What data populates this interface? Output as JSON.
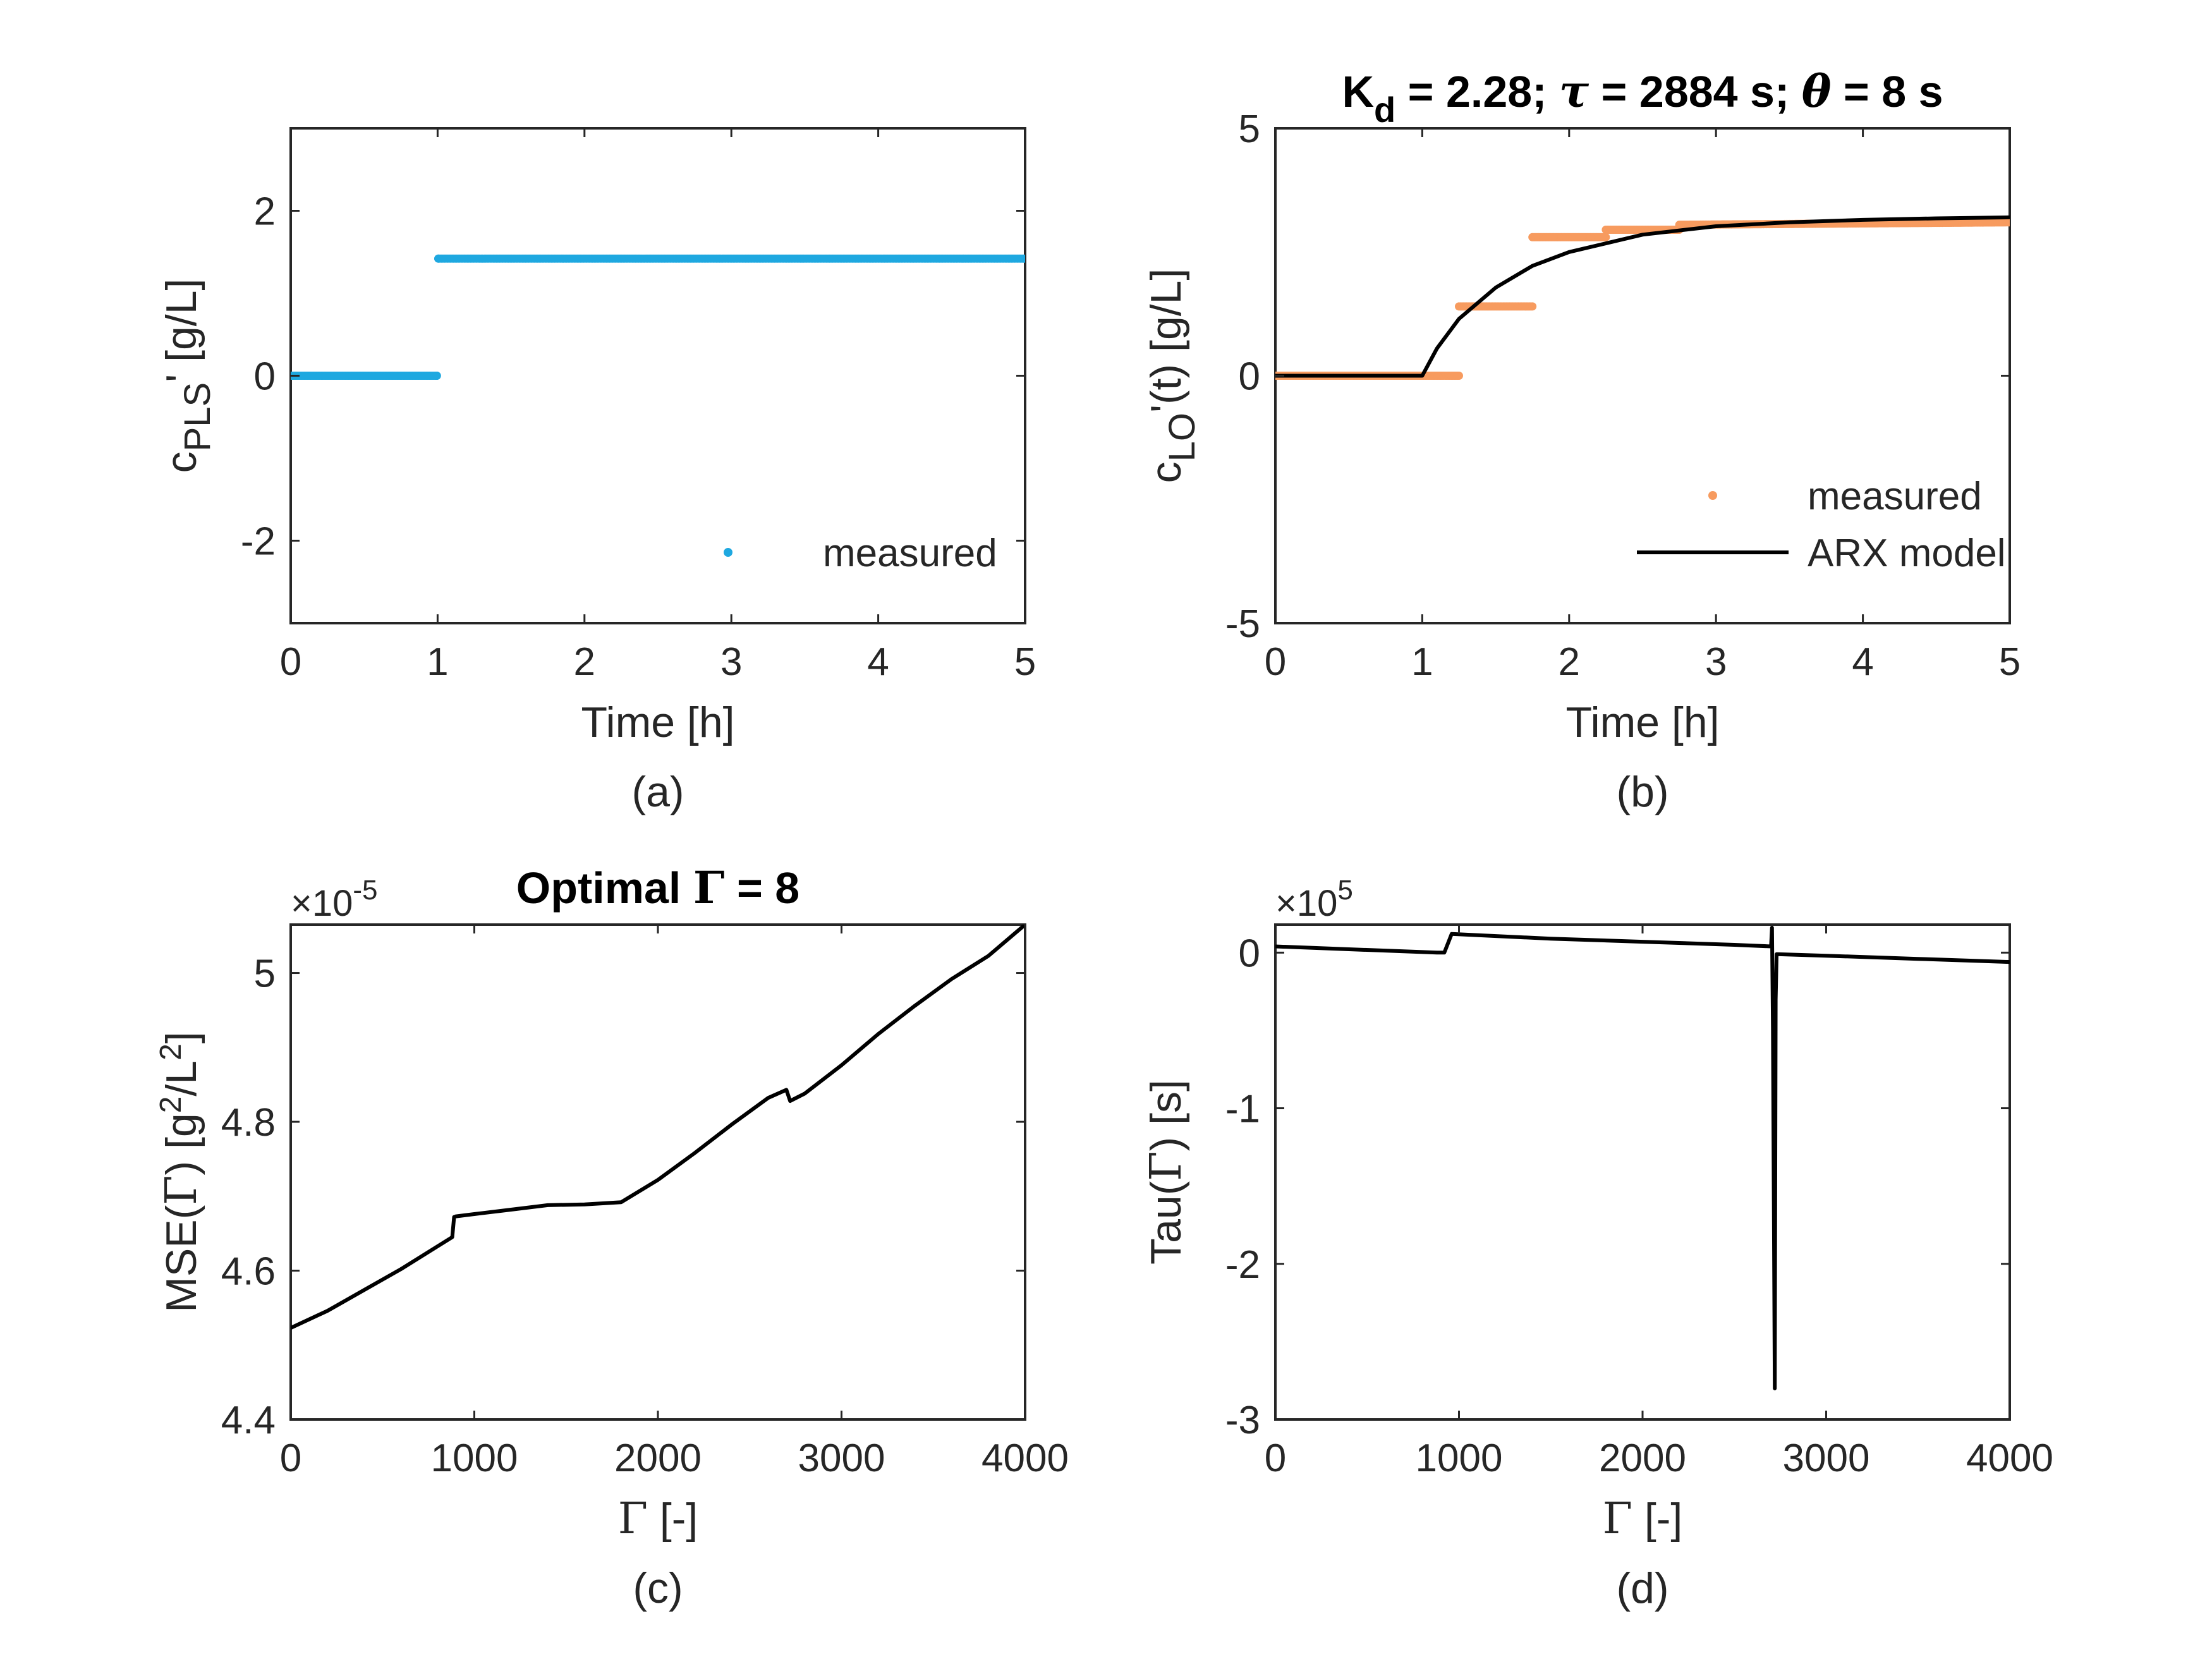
{
  "chart_data": [
    {
      "id": "a",
      "type": "scatter",
      "panel_label": "(a)",
      "title": "",
      "xlabel": "Time [h]",
      "ylabel": "c_PLS' [g/L]",
      "ylabel_parts": {
        "main": "c",
        "sub": "PLS",
        "tail": "' [g/L]"
      },
      "xlim": [
        0,
        5
      ],
      "ylim": [
        -3,
        3
      ],
      "xticks": [
        0,
        1,
        2,
        3,
        4,
        5
      ],
      "yticks": [
        -2,
        0,
        2
      ],
      "ytick_labels": [
        "-2",
        "0",
        "2"
      ],
      "grid": false,
      "legend_position": "bottom-right",
      "series": [
        {
          "name": "measured",
          "style": "dots",
          "color": "#1ea8e0",
          "x": [
            0,
            0.995,
            0.995,
            1.005,
            1.005,
            5
          ],
          "y": [
            0,
            0,
            0,
            1.42,
            1.42,
            1.42
          ]
        }
      ]
    },
    {
      "id": "b",
      "type": "line",
      "panel_label": "(b)",
      "title": "K_d = 2.28; τ = 2884 s; θ = 8 s",
      "title_parts": [
        "K",
        "d",
        " = 2.28; ",
        "τ",
        " = 2884 s; ",
        "θ",
        " = 8 s"
      ],
      "xlabel": "Time [h]",
      "ylabel": "c_LO'(t) [g/L]",
      "ylabel_parts": {
        "main": "c",
        "sub": "LO",
        "tail": "'(t) [g/L]"
      },
      "xlim": [
        0,
        5
      ],
      "ylim": [
        -5,
        5
      ],
      "xticks": [
        0,
        1,
        2,
        3,
        4,
        5
      ],
      "yticks": [
        -5,
        0,
        5
      ],
      "ytick_labels": [
        "-5",
        "0",
        "5"
      ],
      "grid": false,
      "legend_position": "bottom-right",
      "series": [
        {
          "name": "measured",
          "style": "dots",
          "color": "#f79b5f",
          "x": [
            0,
            1.25,
            1.25,
            1.75,
            1.75,
            2.25,
            2.25,
            2.75,
            2.75,
            5
          ],
          "y": [
            0,
            0,
            1.4,
            1.4,
            2.8,
            2.8,
            2.95,
            2.95,
            3.05,
            3.1
          ]
        },
        {
          "name": "ARX model",
          "style": "line",
          "color": "#000000",
          "x": [
            0,
            1.0,
            1.1,
            1.25,
            1.5,
            1.75,
            2.0,
            2.5,
            3.0,
            3.5,
            4.0,
            4.5,
            5.0
          ],
          "y": [
            0,
            0,
            0.55,
            1.15,
            1.78,
            2.22,
            2.5,
            2.85,
            3.02,
            3.1,
            3.15,
            3.18,
            3.2
          ]
        }
      ]
    },
    {
      "id": "c",
      "type": "line",
      "panel_label": "(c)",
      "title": "Optimal Γ = 8",
      "xlabel": "Γ [-]",
      "ylabel": "MSE(Γ) [g²/L²]",
      "ylabel_parts": {
        "a": "MSE(",
        "b": "Γ",
        "c": ") [g",
        "d": "2",
        "e": "/L",
        "f": "2",
        "g": "]"
      },
      "xlim": [
        0,
        4000
      ],
      "ylim": [
        4.4,
        5.065
      ],
      "xticks": [
        0,
        1000,
        2000,
        3000,
        4000
      ],
      "yticks": [
        4.4,
        4.6,
        4.8,
        5.0
      ],
      "ytick_labels": [
        "4.4",
        "4.6",
        "4.8",
        "5"
      ],
      "exponent": {
        "base": "×10",
        "power": "-5"
      },
      "grid": false,
      "series": [
        {
          "name": "",
          "style": "line",
          "color": "#000000",
          "x": [
            0,
            200,
            400,
            600,
            880,
            890,
            900,
            1000,
            1200,
            1400,
            1600,
            1800,
            2000,
            2200,
            2400,
            2600,
            2700,
            2720,
            2800,
            3000,
            3200,
            3400,
            3600,
            3800,
            4000
          ],
          "y": [
            4.523,
            4.546,
            4.574,
            4.602,
            4.645,
            4.672,
            4.673,
            4.676,
            4.682,
            4.688,
            4.689,
            4.692,
            4.722,
            4.758,
            4.796,
            4.832,
            4.843,
            4.828,
            4.838,
            4.876,
            4.918,
            4.956,
            4.992,
            5.023,
            5.065
          ]
        }
      ]
    },
    {
      "id": "d",
      "type": "line",
      "panel_label": "(d)",
      "title": "",
      "xlabel": "Γ [-]",
      "ylabel": "Tau(Γ) [s]",
      "ylabel_parts": {
        "a": "Tau(",
        "b": "Γ",
        "c": ") [s]"
      },
      "xlim": [
        0,
        4000
      ],
      "ylim": [
        -3,
        0.18
      ],
      "xticks": [
        0,
        1000,
        2000,
        3000,
        4000
      ],
      "yticks": [
        -3,
        -2,
        -1,
        0
      ],
      "ytick_labels": [
        "-3",
        "-2",
        "-1",
        "0"
      ],
      "exponent": {
        "base": "×10",
        "power": "5"
      },
      "grid": false,
      "series": [
        {
          "name": "",
          "style": "line",
          "color": "#000000",
          "x": [
            0,
            880,
            920,
            960,
            1500,
            2000,
            2500,
            2700,
            2705,
            2710,
            2715,
            2720,
            2725,
            2730,
            3000,
            3500,
            4000
          ],
          "y": [
            0.04,
            0.0,
            0.0,
            0.12,
            0.09,
            0.07,
            0.05,
            0.04,
            0.16,
            -0.5,
            -1.6,
            -2.8,
            -0.3,
            -0.01,
            -0.02,
            -0.04,
            -0.06
          ]
        }
      ]
    }
  ]
}
